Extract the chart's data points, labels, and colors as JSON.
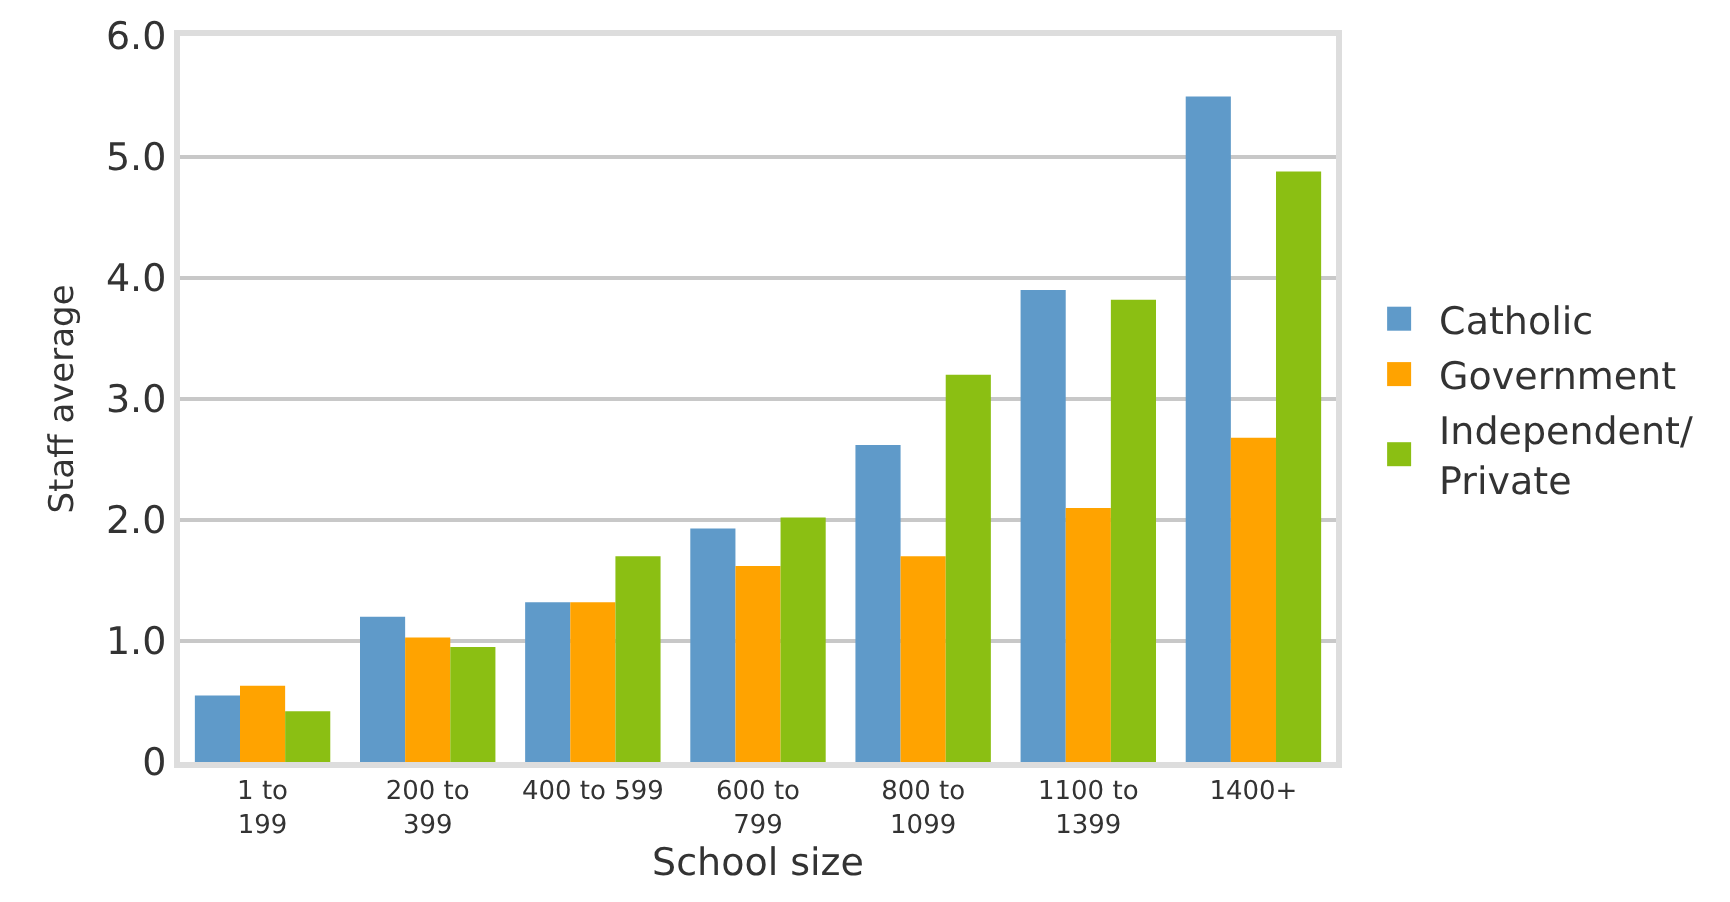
{
  "chart_data": {
    "type": "bar",
    "xlabel": "School size",
    "ylabel": "Staff average",
    "categories": [
      "1 to\n199",
      "200 to\n399",
      "400 to 599",
      "600 to\n799",
      "800 to\n1099",
      "1100 to\n1399",
      "1400+"
    ],
    "series": [
      {
        "name": "Catholic",
        "color": "#5f9ac9",
        "values": [
          0.55,
          1.2,
          1.32,
          1.93,
          2.62,
          3.9,
          5.5
        ]
      },
      {
        "name": "Government",
        "color": "#ffa300",
        "values": [
          0.63,
          1.03,
          1.32,
          1.62,
          1.7,
          2.1,
          2.68
        ]
      },
      {
        "name": "Independent/\nPrivate",
        "color": "#8bbf13",
        "values": [
          0.42,
          0.95,
          1.7,
          2.02,
          3.2,
          3.82,
          4.88
        ]
      }
    ],
    "ylim": [
      0,
      6
    ],
    "yticks": [
      {
        "value": 0,
        "label": "0"
      },
      {
        "value": 1,
        "label": "1.0"
      },
      {
        "value": 2,
        "label": "2.0"
      },
      {
        "value": 3,
        "label": "3.0"
      },
      {
        "value": 4,
        "label": "4.0"
      },
      {
        "value": 5,
        "label": "5.0"
      },
      {
        "value": 6,
        "label": "6.0"
      }
    ],
    "grid": "y",
    "legend": "right"
  }
}
